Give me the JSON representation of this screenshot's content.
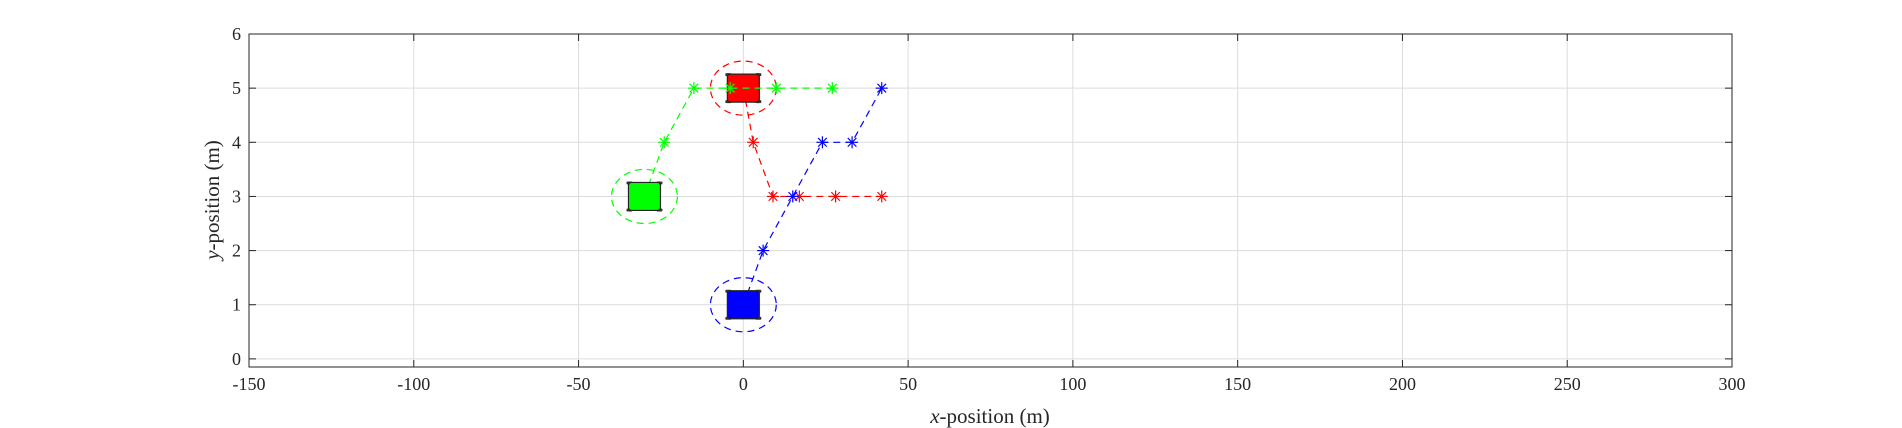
{
  "chart_data": {
    "type": "scatter",
    "xlabel": {
      "var": "x",
      "rest": "-position (m)"
    },
    "ylabel": {
      "var": "y",
      "rest": "-position (m)"
    },
    "xlim": [
      -150,
      300
    ],
    "ylim": [
      -0.15,
      6
    ],
    "xticks": [
      -150,
      -100,
      -50,
      0,
      50,
      100,
      150,
      200,
      250,
      300
    ],
    "yticks": [
      0,
      1,
      2,
      3,
      4,
      5,
      6
    ],
    "xtick_labels": [
      "-150",
      "-100",
      "-50",
      "0",
      "50",
      "100",
      "150",
      "200",
      "250",
      "300"
    ],
    "ytick_labels": [
      "0",
      "1",
      "2",
      "3",
      "4",
      "5",
      "6"
    ],
    "grid": true,
    "series": [
      {
        "color": "#ff0000",
        "vehicle": {
          "x": 0,
          "y": 5
        },
        "safety_ellipse": {
          "rx": 10,
          "ry": 0.5
        },
        "path": [
          {
            "x": 0,
            "y": 5
          },
          {
            "x": 3,
            "y": 4
          },
          {
            "x": 9,
            "y": 3
          },
          {
            "x": 17,
            "y": 3
          },
          {
            "x": 28,
            "y": 3
          },
          {
            "x": 42,
            "y": 3
          }
        ]
      },
      {
        "color": "#00ff00",
        "vehicle": {
          "x": -30,
          "y": 3
        },
        "safety_ellipse": {
          "rx": 10,
          "ry": 0.5
        },
        "path": [
          {
            "x": -30,
            "y": 3
          },
          {
            "x": -24,
            "y": 4
          },
          {
            "x": -15,
            "y": 5
          },
          {
            "x": -4,
            "y": 5
          },
          {
            "x": 10,
            "y": 5
          },
          {
            "x": 27,
            "y": 5
          }
        ]
      },
      {
        "color": "#0000ff",
        "vehicle": {
          "x": 0,
          "y": 1
        },
        "safety_ellipse": {
          "rx": 10,
          "ry": 0.5
        },
        "path": [
          {
            "x": 0,
            "y": 1
          },
          {
            "x": 6,
            "y": 2
          },
          {
            "x": 15,
            "y": 3
          },
          {
            "x": 24,
            "y": 4
          },
          {
            "x": 33,
            "y": 4
          },
          {
            "x": 42,
            "y": 5
          }
        ]
      }
    ]
  }
}
